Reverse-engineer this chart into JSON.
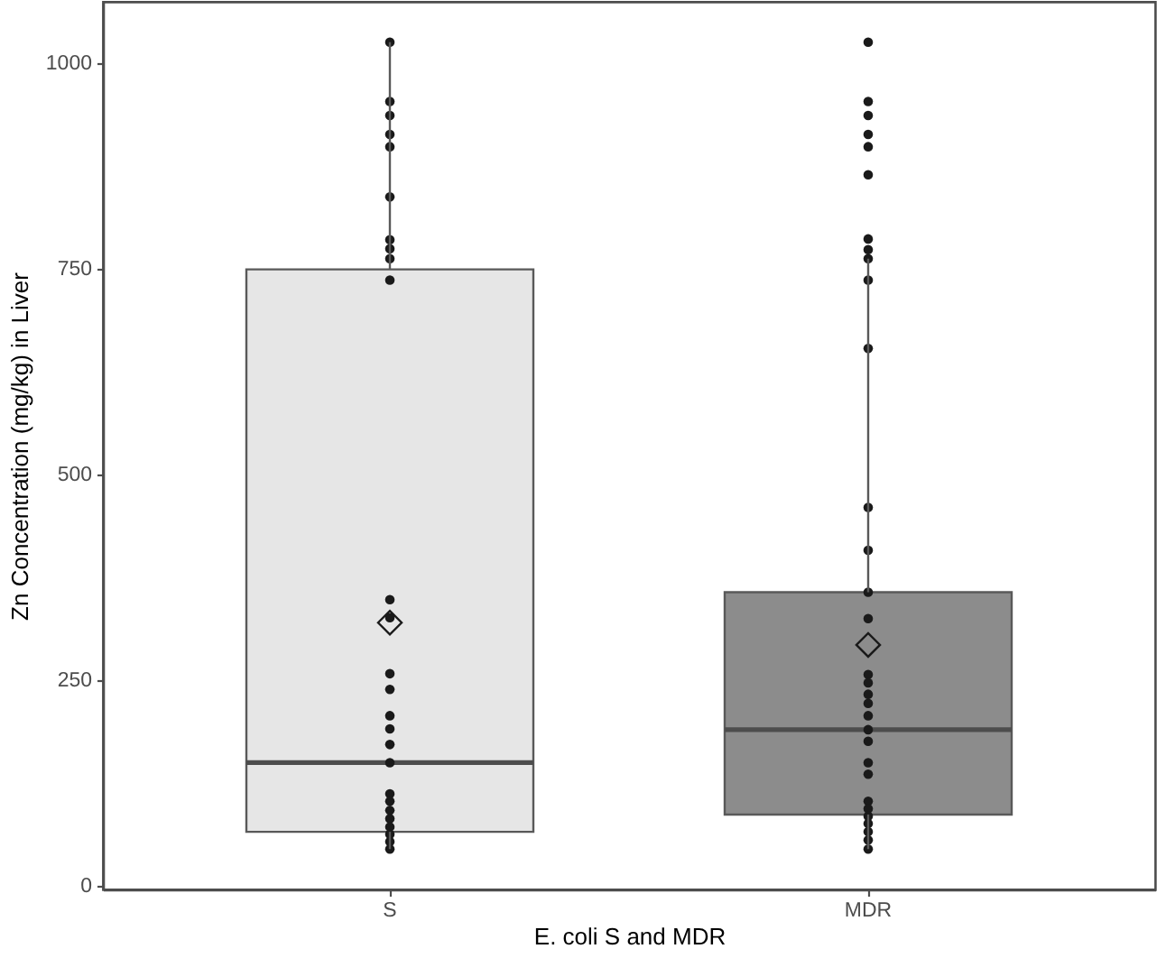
{
  "chart_data": {
    "type": "box",
    "xlabel": "E. coli S and MDR",
    "ylabel": "Zn Concentration (mg/kg) in Liver",
    "categories": [
      "S",
      "MDR"
    ],
    "ylim": [
      -4,
      1074
    ],
    "yticks": [
      0,
      250,
      500,
      750,
      1000
    ],
    "series": [
      {
        "colors": [
          "#e6e6e6",
          "#8c8c8c"
        ],
        "boxes": [
          {
            "low": 45,
            "q1": 66,
            "median": 150,
            "q3": 749,
            "high": 1025,
            "mean": 320
          },
          {
            "low": 45,
            "q1": 87,
            "median": 190,
            "q3": 357,
            "high": 762,
            "mean": 293
          }
        ]
      },
      {
        "type": "scatter",
        "color": "#1a1a1a",
        "marker": "circle",
        "x": [
          "S",
          "S",
          "S",
          "S",
          "S",
          "S",
          "S",
          "S",
          "S",
          "S",
          "S",
          "S",
          "S",
          "S",
          "S",
          "S",
          "S",
          "S",
          "S",
          "S",
          "S",
          "S",
          "S",
          "S",
          "S",
          "S",
          "MDR",
          "MDR",
          "MDR",
          "MDR",
          "MDR",
          "MDR",
          "MDR",
          "MDR",
          "MDR",
          "MDR",
          "MDR",
          "MDR",
          "MDR",
          "MDR",
          "MDR",
          "MDR",
          "MDR",
          "MDR",
          "MDR",
          "MDR",
          "MDR",
          "MDR",
          "MDR",
          "MDR",
          "MDR",
          "MDR",
          "MDR",
          "MDR",
          "MDR",
          "MDR",
          "MDR"
        ],
        "values": [
          1025,
          953,
          936,
          913,
          898,
          837,
          785,
          774,
          762,
          736,
          348,
          326,
          258,
          239,
          207,
          191,
          172,
          150,
          112,
          103,
          92,
          82,
          72,
          63,
          54,
          45,
          1025,
          953,
          936,
          913,
          898,
          864,
          786,
          773,
          762,
          736,
          653,
          460,
          408,
          357,
          325,
          257,
          247,
          233,
          222,
          207,
          190,
          176,
          150,
          136,
          103,
          94,
          85,
          76,
          66,
          56,
          45
        ]
      }
    ]
  }
}
